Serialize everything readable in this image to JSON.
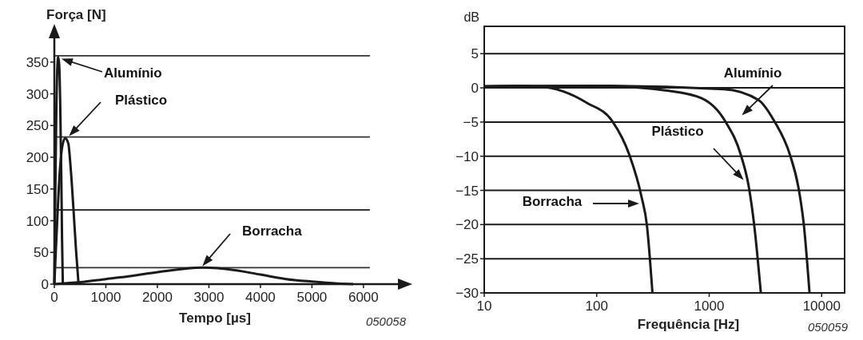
{
  "chart_data": [
    {
      "type": "line",
      "ylabel": "Força [N]",
      "xlabel": "Tempo [µs]",
      "xlim": [
        0,
        6700
      ],
      "ylim": [
        0,
        390
      ],
      "xticks": [
        0,
        1000,
        2000,
        3000,
        4000,
        5000,
        6000
      ],
      "yticks": [
        0,
        50,
        100,
        150,
        200,
        250,
        300,
        350
      ],
      "grid": false,
      "marker": "none",
      "line_style": "solid",
      "series": [
        {
          "color": "#1a1a1a",
          "x": [
            0,
            20,
            40,
            60,
            75,
            95,
            115,
            135,
            150,
            165
          ],
          "values": [
            0,
            150,
            280,
            345,
            358,
            345,
            280,
            170,
            70,
            0
          ]
        },
        {
          "color": "#1a1a1a",
          "x": [
            0,
            50,
            100,
            150,
            210,
            270,
            320,
            370,
            420,
            470
          ],
          "values": [
            0,
            90,
            170,
            215,
            230,
            222,
            180,
            120,
            55,
            0
          ]
        },
        {
          "color": "#1a1a1a",
          "x": [
            0,
            500,
            1000,
            1500,
            2000,
            2500,
            2900,
            3500,
            4000,
            4500,
            5000,
            5500,
            5800
          ],
          "values": [
            0,
            3,
            8,
            13,
            19,
            24,
            26,
            22,
            15,
            8,
            4,
            1,
            0
          ]
        }
      ],
      "ref_lines": [
        {
          "axis": "y",
          "value": 360
        },
        {
          "axis": "y",
          "value": 232
        },
        {
          "axis": "y",
          "value": 117
        },
        {
          "axis": "y",
          "value": 26
        }
      ],
      "annotations": [
        "Alumínio",
        "Plástico",
        "Borracha",
        "050058"
      ]
    },
    {
      "type": "line",
      "ylabel": "dB",
      "xlabel": "Frequência [Hz]",
      "log": "x",
      "xlim": [
        10,
        16000
      ],
      "ylim": [
        -30,
        9
      ],
      "xticks": [
        10,
        100,
        1000,
        10000
      ],
      "yticks": [
        {
          "value": -30,
          "label": "−30"
        },
        {
          "value": -25,
          "label": "−25"
        },
        {
          "value": -20,
          "label": "−20"
        },
        {
          "value": -15,
          "label": "−15"
        },
        {
          "value": -10,
          "label": "−10"
        },
        {
          "value": -5,
          "label": "−5"
        },
        0,
        5
      ],
      "grid": "y",
      "marker": "none",
      "line_style": "solid",
      "series": [
        {
          "color": "#1a1a1a",
          "x": [
            10,
            20,
            30,
            50,
            82,
            138,
            196,
            250,
            279,
            313
          ],
          "values": [
            0.2,
            0.3,
            0.2,
            -0.5,
            -2.2,
            -4.9,
            -9.9,
            -15.9,
            -20,
            -30
          ]
        },
        {
          "color": "#1a1a1a",
          "x": [
            10,
            100,
            420,
            850,
            1390,
            1920,
            2240,
            2510,
            2880
          ],
          "values": [
            0.2,
            0.3,
            -0.4,
            -1.5,
            -4.9,
            -9.9,
            -14.3,
            -20,
            -30
          ]
        },
        {
          "color": "#1a1a1a",
          "x": [
            10,
            100,
            1350,
            2750,
            3800,
            5250,
            6170,
            6940,
            7800
          ],
          "values": [
            0.2,
            0.3,
            -0.2,
            -1.8,
            -4.9,
            -9.9,
            -14.3,
            -20,
            -30
          ]
        }
      ],
      "annotations": [
        "Alumínio",
        "Plástico",
        "Borracha",
        "050059"
      ]
    }
  ]
}
